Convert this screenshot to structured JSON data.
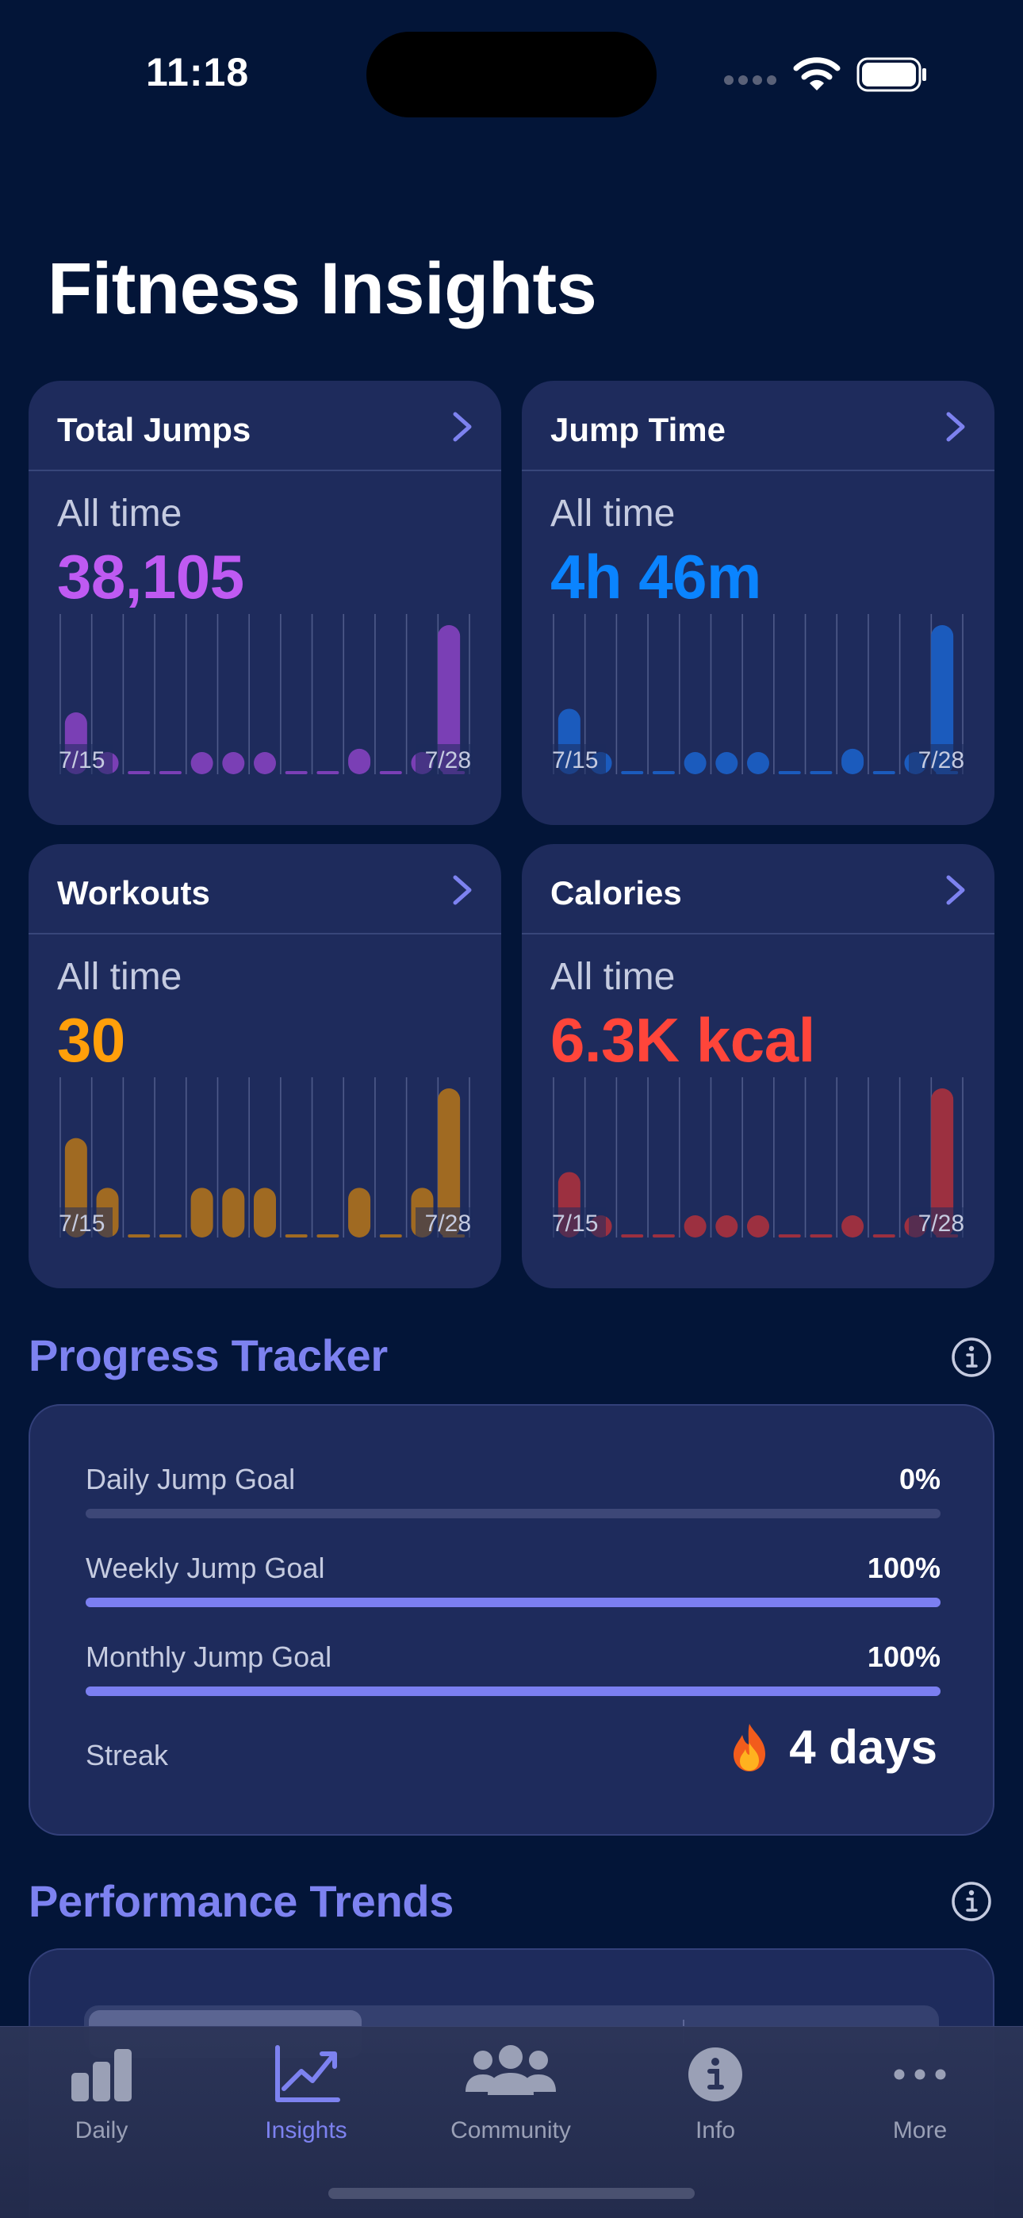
{
  "status_bar": {
    "time": "11:18"
  },
  "page": {
    "title": "Fitness Insights"
  },
  "cards": [
    {
      "title": "Total Jumps",
      "subtitle": "All time",
      "value": "38,105",
      "color": "#bf5af2",
      "bar_color": "#7a3fb5",
      "chart_data": {
        "type": "bar",
        "x_start_label": "7/15",
        "x_end_label": "7/28",
        "values": [
          17,
          3,
          0,
          0,
          5,
          5,
          4,
          0,
          0,
          7,
          0,
          4,
          0,
          41
        ]
      }
    },
    {
      "title": "Jump Time",
      "subtitle": "All time",
      "value": "4h 46m",
      "color": "#0a84ff",
      "bar_color": "#1b5bbd",
      "chart_data": {
        "type": "bar",
        "x_start_label": "7/15",
        "x_end_label": "7/28",
        "values": [
          18,
          3,
          0,
          0,
          6,
          6,
          5,
          0,
          0,
          7,
          0,
          6,
          0,
          41
        ]
      }
    },
    {
      "title": "Workouts",
      "subtitle": "All time",
      "value": "30",
      "color": "#ff9f0a",
      "bar_color": "#a06a22",
      "chart_data": {
        "type": "bar",
        "x_start_label": "7/15",
        "x_end_label": "7/28",
        "values": [
          2,
          1,
          0,
          0,
          1,
          1,
          1,
          0,
          0,
          1,
          0,
          1,
          0,
          3
        ]
      }
    },
    {
      "title": "Calories",
      "subtitle": "All time",
      "value": "6.3K kcal",
      "color": "#ff453a",
      "bar_color": "#9c3040",
      "chart_data": {
        "type": "bar",
        "x_start_label": "7/15",
        "x_end_label": "7/28",
        "values": [
          18,
          3,
          0,
          0,
          6,
          6,
          5,
          0,
          0,
          5,
          0,
          6,
          0,
          41
        ]
      }
    }
  ],
  "progress": {
    "title": "Progress Tracker",
    "goals": [
      {
        "label": "Daily Jump Goal",
        "value": "0%",
        "fraction": 0
      },
      {
        "label": "Weekly Jump Goal",
        "value": "100%",
        "fraction": 1
      },
      {
        "label": "Monthly Jump Goal",
        "value": "100%",
        "fraction": 1
      }
    ],
    "streak_label": "Streak",
    "streak_value": "4 days",
    "streak_icon": "flame-icon"
  },
  "trends": {
    "title": "Performance Trends"
  },
  "tab_bar": {
    "items": [
      {
        "label": "Daily",
        "icon": "bar-chart-icon"
      },
      {
        "label": "Insights",
        "icon": "trend-chart-icon",
        "active": true
      },
      {
        "label": "Community",
        "icon": "people-icon"
      },
      {
        "label": "Info",
        "icon": "info-circle-icon"
      },
      {
        "label": "More",
        "icon": "ellipsis-icon"
      }
    ],
    "active_color": "#7d82f0"
  }
}
